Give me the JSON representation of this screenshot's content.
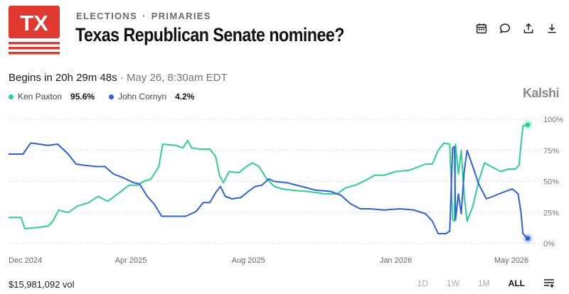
{
  "logo": {
    "text": "TX",
    "bg": "#e03a30",
    "stripe_color": "#e03a30"
  },
  "header": {
    "category_primary": "ELECTIONS",
    "category_separator": "·",
    "category_secondary": "PRIMARIES",
    "title": "Texas Republican Senate nominee?"
  },
  "actions": [
    {
      "name": "calendar-icon"
    },
    {
      "name": "comment-icon"
    },
    {
      "name": "share-icon"
    },
    {
      "name": "download-icon"
    }
  ],
  "countdown": {
    "label": "Begins in 20h 29m 48s",
    "separator": "·",
    "datetime": "May 26, 8:30am EDT"
  },
  "legend": [
    {
      "name": "Ken Paxton",
      "value": "95.6%",
      "color": "#2ecf94"
    },
    {
      "name": "John Cornyn",
      "value": "4.2%",
      "color": "#2d5fe0"
    }
  ],
  "brand": "Kalshi",
  "footer": {
    "volume": "$15,981,092 vol",
    "ranges": [
      "1D",
      "1W",
      "1M",
      "ALL"
    ],
    "active_range": "ALL"
  },
  "chart_data": {
    "type": "line",
    "ylim": [
      0,
      100
    ],
    "xlim": [
      "2024-11-25",
      "2026-05-18"
    ],
    "y_ticks": [
      {
        "value": 0,
        "label": "0%"
      },
      {
        "value": 25,
        "label": "25%"
      },
      {
        "value": 50,
        "label": "50%"
      },
      {
        "value": 75,
        "label": "75%"
      },
      {
        "value": 100,
        "label": "100%"
      }
    ],
    "x_ticks": [
      {
        "date": "2024-12-01",
        "label": "Dec 2024"
      },
      {
        "date": "2025-04-01",
        "label": "Apr 2025"
      },
      {
        "date": "2025-08-01",
        "label": "Aug 2025"
      },
      {
        "date": "2026-01-01",
        "label": "Jan 2026"
      },
      {
        "date": "2026-05-01",
        "label": "May 2026"
      }
    ],
    "grid": true,
    "series": [
      {
        "name": "Ken Paxton",
        "color": "#2ecf94",
        "points": [
          [
            "2024-11-25",
            21
          ],
          [
            "2024-12-08",
            21
          ],
          [
            "2024-12-12",
            12
          ],
          [
            "2024-12-25",
            13
          ],
          [
            "2025-01-05",
            14
          ],
          [
            "2025-01-10",
            18
          ],
          [
            "2025-01-16",
            27
          ],
          [
            "2025-01-26",
            25
          ],
          [
            "2025-02-04",
            30
          ],
          [
            "2025-02-16",
            33
          ],
          [
            "2025-02-26",
            38
          ],
          [
            "2025-03-08",
            34
          ],
          [
            "2025-03-20",
            41
          ],
          [
            "2025-03-30",
            47
          ],
          [
            "2025-04-08",
            47
          ],
          [
            "2025-04-14",
            50
          ],
          [
            "2025-04-22",
            52
          ],
          [
            "2025-04-30",
            62
          ],
          [
            "2025-05-04",
            80
          ],
          [
            "2025-05-18",
            79
          ],
          [
            "2025-05-25",
            77
          ],
          [
            "2025-05-30",
            83
          ],
          [
            "2025-06-03",
            77
          ],
          [
            "2025-06-12",
            76
          ],
          [
            "2025-06-22",
            76
          ],
          [
            "2025-06-28",
            70
          ],
          [
            "2025-07-02",
            55
          ],
          [
            "2025-07-06",
            49
          ],
          [
            "2025-07-12",
            58
          ],
          [
            "2025-07-22",
            57
          ],
          [
            "2025-07-30",
            62
          ],
          [
            "2025-08-05",
            65
          ],
          [
            "2025-08-12",
            62
          ],
          [
            "2025-08-20",
            52
          ],
          [
            "2025-08-28",
            46
          ],
          [
            "2025-09-05",
            44
          ],
          [
            "2025-09-15",
            43
          ],
          [
            "2025-10-01",
            42
          ],
          [
            "2025-10-20",
            40
          ],
          [
            "2025-11-01",
            40
          ],
          [
            "2025-11-10",
            45
          ],
          [
            "2025-11-20",
            47
          ],
          [
            "2025-12-01",
            51
          ],
          [
            "2025-12-10",
            55
          ],
          [
            "2025-12-20",
            55
          ],
          [
            "2026-01-01",
            58
          ],
          [
            "2026-01-15",
            59
          ],
          [
            "2026-02-01",
            64
          ],
          [
            "2026-02-08",
            64
          ],
          [
            "2026-02-14",
            75
          ],
          [
            "2026-02-20",
            81
          ],
          [
            "2026-02-26",
            80
          ],
          [
            "2026-03-01",
            19
          ],
          [
            "2026-03-03",
            18
          ],
          [
            "2026-03-04",
            80
          ],
          [
            "2026-03-07",
            56
          ],
          [
            "2026-03-10",
            75
          ],
          [
            "2026-03-13",
            39
          ],
          [
            "2026-03-16",
            18
          ],
          [
            "2026-03-22",
            30
          ],
          [
            "2026-03-28",
            50
          ],
          [
            "2026-04-03",
            65
          ],
          [
            "2026-04-10",
            62
          ],
          [
            "2026-04-20",
            58
          ],
          [
            "2026-04-28",
            60
          ],
          [
            "2026-05-05",
            60
          ],
          [
            "2026-05-09",
            63
          ],
          [
            "2026-05-11",
            80
          ],
          [
            "2026-05-13",
            95
          ],
          [
            "2026-05-18",
            95.6
          ]
        ]
      },
      {
        "name": "John Cornyn",
        "color": "#2d5fe0",
        "points": [
          [
            "2024-11-25",
            72
          ],
          [
            "2024-12-10",
            72
          ],
          [
            "2024-12-18",
            81
          ],
          [
            "2025-01-05",
            79
          ],
          [
            "2025-01-15",
            80
          ],
          [
            "2025-01-26",
            72
          ],
          [
            "2025-02-03",
            64
          ],
          [
            "2025-02-12",
            63
          ],
          [
            "2025-02-24",
            62
          ],
          [
            "2025-03-05",
            62
          ],
          [
            "2025-03-14",
            56
          ],
          [
            "2025-03-24",
            53
          ],
          [
            "2025-04-04",
            49
          ],
          [
            "2025-04-10",
            48
          ],
          [
            "2025-04-18",
            38
          ],
          [
            "2025-04-25",
            32
          ],
          [
            "2025-05-03",
            22
          ],
          [
            "2025-05-18",
            22
          ],
          [
            "2025-05-28",
            22
          ],
          [
            "2025-06-08",
            26
          ],
          [
            "2025-06-15",
            33
          ],
          [
            "2025-06-22",
            33
          ],
          [
            "2025-06-28",
            41
          ],
          [
            "2025-07-03",
            46
          ],
          [
            "2025-07-08",
            38
          ],
          [
            "2025-07-15",
            36
          ],
          [
            "2025-07-24",
            37
          ],
          [
            "2025-08-01",
            42
          ],
          [
            "2025-08-08",
            46
          ],
          [
            "2025-08-15",
            47
          ],
          [
            "2025-08-22",
            52
          ],
          [
            "2025-08-28",
            50
          ],
          [
            "2025-09-10",
            49
          ],
          [
            "2025-09-25",
            46
          ],
          [
            "2025-10-10",
            43
          ],
          [
            "2025-10-25",
            42
          ],
          [
            "2025-11-05",
            39
          ],
          [
            "2025-11-15",
            32
          ],
          [
            "2025-11-25",
            28
          ],
          [
            "2025-12-05",
            28
          ],
          [
            "2025-12-20",
            27
          ],
          [
            "2026-01-05",
            28
          ],
          [
            "2026-01-20",
            27
          ],
          [
            "2026-02-01",
            24
          ],
          [
            "2026-02-08",
            18
          ],
          [
            "2026-02-14",
            8
          ],
          [
            "2026-02-22",
            8
          ],
          [
            "2026-02-26",
            10
          ],
          [
            "2026-03-01",
            77
          ],
          [
            "2026-03-03",
            78
          ],
          [
            "2026-03-04",
            19
          ],
          [
            "2026-03-07",
            40
          ],
          [
            "2026-03-10",
            24
          ],
          [
            "2026-03-13",
            58
          ],
          [
            "2026-03-16",
            75
          ],
          [
            "2026-03-22",
            62
          ],
          [
            "2026-03-28",
            48
          ],
          [
            "2026-04-05",
            36
          ],
          [
            "2026-04-12",
            38
          ],
          [
            "2026-04-18",
            40
          ],
          [
            "2026-04-25",
            42
          ],
          [
            "2026-05-02",
            44
          ],
          [
            "2026-05-08",
            40
          ],
          [
            "2026-05-11",
            25
          ],
          [
            "2026-05-13",
            8
          ],
          [
            "2026-05-18",
            4.2
          ]
        ]
      }
    ]
  }
}
